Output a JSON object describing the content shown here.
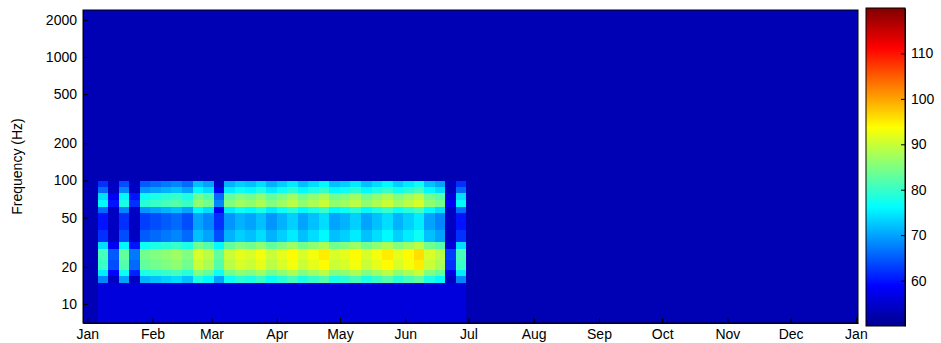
{
  "chart_data": {
    "type": "heatmap",
    "y_label": "Frequency (Hz)",
    "log": "y",
    "xlim": [
      -2,
      366
    ],
    "xticks": [
      {
        "value": 0,
        "label": "Jan"
      },
      {
        "value": 31,
        "label": "Feb"
      },
      {
        "value": 59,
        "label": "Mar"
      },
      {
        "value": 90,
        "label": "Apr"
      },
      {
        "value": 120,
        "label": "May"
      },
      {
        "value": 151,
        "label": "Jun"
      },
      {
        "value": 181,
        "label": "Jul"
      },
      {
        "value": 212,
        "label": "Aug"
      },
      {
        "value": 243,
        "label": "Sep"
      },
      {
        "value": 273,
        "label": "Oct"
      },
      {
        "value": 304,
        "label": "Nov"
      },
      {
        "value": 334,
        "label": "Dec"
      },
      {
        "value": 365,
        "label": "Jan"
      }
    ],
    "ylim": [
      7,
      2400
    ],
    "yticks": [
      10,
      20,
      50,
      100,
      200,
      500,
      1000,
      2000
    ],
    "zlim": [
      50,
      120
    ],
    "zticks": [
      60,
      70,
      80,
      90,
      100,
      110
    ],
    "cells": {
      "x_edges": [
        -2,
        5,
        10,
        15,
        20,
        25,
        30,
        35,
        40,
        45,
        50,
        55,
        60,
        65,
        70,
        75,
        80,
        85,
        90,
        95,
        100,
        105,
        110,
        115,
        120,
        125,
        130,
        135,
        140,
        145,
        150,
        155,
        160,
        165,
        170,
        175,
        180,
        366
      ],
      "y_edges": [
        7,
        15,
        17,
        19,
        23,
        28,
        32,
        40,
        55,
        62,
        70,
        80,
        90,
        100,
        2400
      ],
      "z": [
        [
          53,
          56,
          56,
          56,
          56,
          56,
          56,
          56,
          56,
          56,
          56,
          56,
          56,
          56,
          56,
          56,
          56,
          56,
          56,
          56,
          56,
          56,
          56,
          56,
          56,
          56,
          56,
          56,
          56,
          56,
          56,
          56,
          56,
          56,
          56,
          56,
          53
        ],
        [
          53,
          68,
          54,
          70,
          54,
          71,
          72,
          73,
          74,
          72,
          78,
          76,
          70,
          77,
          79,
          78,
          80,
          77,
          79,
          81,
          78,
          80,
          82,
          78,
          79,
          81,
          78,
          80,
          82,
          79,
          81,
          83,
          78,
          76,
          54,
          68,
          53
        ],
        [
          53,
          75,
          59,
          77,
          61,
          78,
          79,
          80,
          81,
          79,
          85,
          83,
          77,
          84,
          86,
          85,
          87,
          84,
          86,
          88,
          85,
          87,
          89,
          85,
          86,
          88,
          85,
          87,
          89,
          86,
          88,
          90,
          85,
          83,
          57,
          75,
          53
        ],
        [
          53,
          80,
          64,
          82,
          66,
          83,
          84,
          85,
          86,
          84,
          90,
          88,
          82,
          89,
          91,
          90,
          92,
          89,
          91,
          93,
          90,
          92,
          94,
          90,
          91,
          93,
          90,
          92,
          94,
          91,
          93,
          95,
          90,
          88,
          62,
          80,
          53
        ],
        [
          53,
          81,
          65,
          83,
          67,
          84,
          85,
          86,
          87,
          85,
          91,
          89,
          83,
          90,
          92,
          91,
          93,
          90,
          92,
          94,
          91,
          93,
          95,
          91,
          92,
          94,
          91,
          93,
          95,
          92,
          94,
          96,
          91,
          89,
          63,
          81,
          53
        ],
        [
          53,
          74,
          58,
          76,
          60,
          77,
          78,
          79,
          80,
          78,
          84,
          82,
          76,
          83,
          85,
          84,
          86,
          83,
          85,
          87,
          84,
          86,
          88,
          84,
          85,
          87,
          84,
          86,
          88,
          85,
          87,
          89,
          84,
          82,
          56,
          74,
          53
        ],
        [
          53,
          62,
          54,
          64,
          54,
          65,
          66,
          67,
          68,
          66,
          72,
          70,
          64,
          71,
          73,
          72,
          74,
          71,
          73,
          75,
          72,
          74,
          76,
          72,
          73,
          75,
          72,
          74,
          76,
          73,
          75,
          77,
          72,
          70,
          54,
          62,
          53
        ],
        [
          53,
          60,
          54,
          62,
          54,
          63,
          64,
          65,
          66,
          64,
          70,
          68,
          62,
          69,
          71,
          70,
          72,
          69,
          71,
          73,
          70,
          72,
          74,
          70,
          71,
          73,
          70,
          72,
          74,
          71,
          73,
          75,
          70,
          68,
          54,
          60,
          53
        ],
        [
          53,
          66,
          54,
          68,
          54,
          69,
          70,
          71,
          72,
          70,
          76,
          74,
          58,
          75,
          77,
          76,
          78,
          75,
          77,
          79,
          76,
          78,
          80,
          76,
          77,
          79,
          76,
          78,
          80,
          77,
          79,
          81,
          76,
          74,
          54,
          66,
          53
        ],
        [
          53,
          76,
          60,
          78,
          62,
          79,
          80,
          81,
          82,
          80,
          86,
          84,
          68,
          85,
          87,
          86,
          88,
          85,
          87,
          89,
          86,
          88,
          90,
          86,
          87,
          89,
          86,
          88,
          90,
          87,
          89,
          91,
          86,
          84,
          58,
          76,
          53
        ],
        [
          53,
          74,
          58,
          76,
          60,
          77,
          78,
          79,
          80,
          78,
          84,
          82,
          66,
          83,
          85,
          84,
          86,
          83,
          85,
          87,
          84,
          86,
          88,
          84,
          85,
          87,
          84,
          86,
          88,
          85,
          87,
          89,
          84,
          82,
          56,
          74,
          53
        ],
        [
          53,
          66,
          54,
          68,
          54,
          69,
          70,
          71,
          72,
          70,
          76,
          74,
          58,
          75,
          77,
          76,
          78,
          75,
          77,
          79,
          76,
          78,
          80,
          76,
          77,
          79,
          76,
          78,
          80,
          77,
          79,
          81,
          76,
          74,
          54,
          66,
          53
        ],
        [
          53,
          62,
          54,
          64,
          54,
          65,
          66,
          67,
          68,
          66,
          72,
          70,
          54,
          71,
          73,
          72,
          74,
          71,
          73,
          75,
          72,
          74,
          76,
          72,
          73,
          75,
          72,
          74,
          76,
          73,
          75,
          77,
          72,
          70,
          54,
          62,
          53
        ],
        [
          53,
          53,
          53,
          53,
          53,
          53,
          53,
          53,
          53,
          53,
          53,
          53,
          53,
          53,
          53,
          53,
          53,
          53,
          53,
          53,
          53,
          53,
          53,
          53,
          53,
          53,
          53,
          53,
          53,
          53,
          53,
          53,
          53,
          53,
          53,
          53,
          53
        ]
      ]
    }
  }
}
